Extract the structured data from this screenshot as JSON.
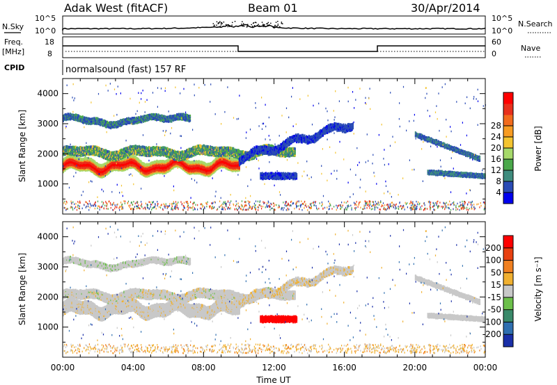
{
  "header": {
    "station": "Adak West (fitACF)",
    "beam": "Beam 01",
    "date": "30/Apr/2014"
  },
  "strip_labels": {
    "nsky": "N.Sky",
    "nsky_ticks": [
      "10^5",
      "10^0"
    ],
    "nsearch": "N.Search",
    "nsearch_ticks": [
      "10^5",
      "10^0"
    ],
    "freq_line1": "Freq.",
    "freq_line2": "[MHz]",
    "freq_ticks": [
      "18",
      "8"
    ],
    "nave": "Nave",
    "nave_ticks": [
      "60",
      "0"
    ],
    "cpid": "CPID",
    "cpid_text": "normalsound (fast) 157 RF"
  },
  "chart_data": [
    {
      "type": "heatmap",
      "name": "Power",
      "ylabel": "Slant Range [km]",
      "yticks": [
        "1000",
        "2000",
        "3000",
        "4000"
      ],
      "ylim": [
        0,
        4500
      ],
      "xlim_hours": [
        0,
        24
      ],
      "colorbar": {
        "label": "Power [dB]",
        "ticks": [
          "4",
          "8",
          "12",
          "16",
          "20",
          "24",
          "28"
        ],
        "colors": [
          "#0000ee",
          "#2a4bb5",
          "#3f8c7e",
          "#4aa84a",
          "#a6d96a",
          "#f4c430",
          "#f79b22",
          "#f26b1d",
          "#e8301c",
          "#ff0000"
        ]
      }
    },
    {
      "type": "heatmap",
      "name": "Velocity",
      "ylabel": "Slant Range [km]",
      "yticks": [
        "1000",
        "2000",
        "3000",
        "4000"
      ],
      "ylim": [
        0,
        4500
      ],
      "xlim_hours": [
        0,
        24
      ],
      "xlabel": "Time UT",
      "xticks": [
        "00:00",
        "04:00",
        "08:00",
        "12:00",
        "16:00",
        "20:00",
        "00:00"
      ],
      "colorbar": {
        "label": "Velocity [m s⁻¹]",
        "ticks": [
          "200",
          "100",
          "50",
          "15",
          "-15",
          "-50",
          "-100",
          "-200"
        ],
        "colors": [
          "#1a2fa8",
          "#2f6fb0",
          "#3a8a6a",
          "#6cc04a",
          "#c8c8c8",
          "#f0b030",
          "#f08020",
          "#e84010",
          "#ff0000"
        ]
      }
    }
  ]
}
